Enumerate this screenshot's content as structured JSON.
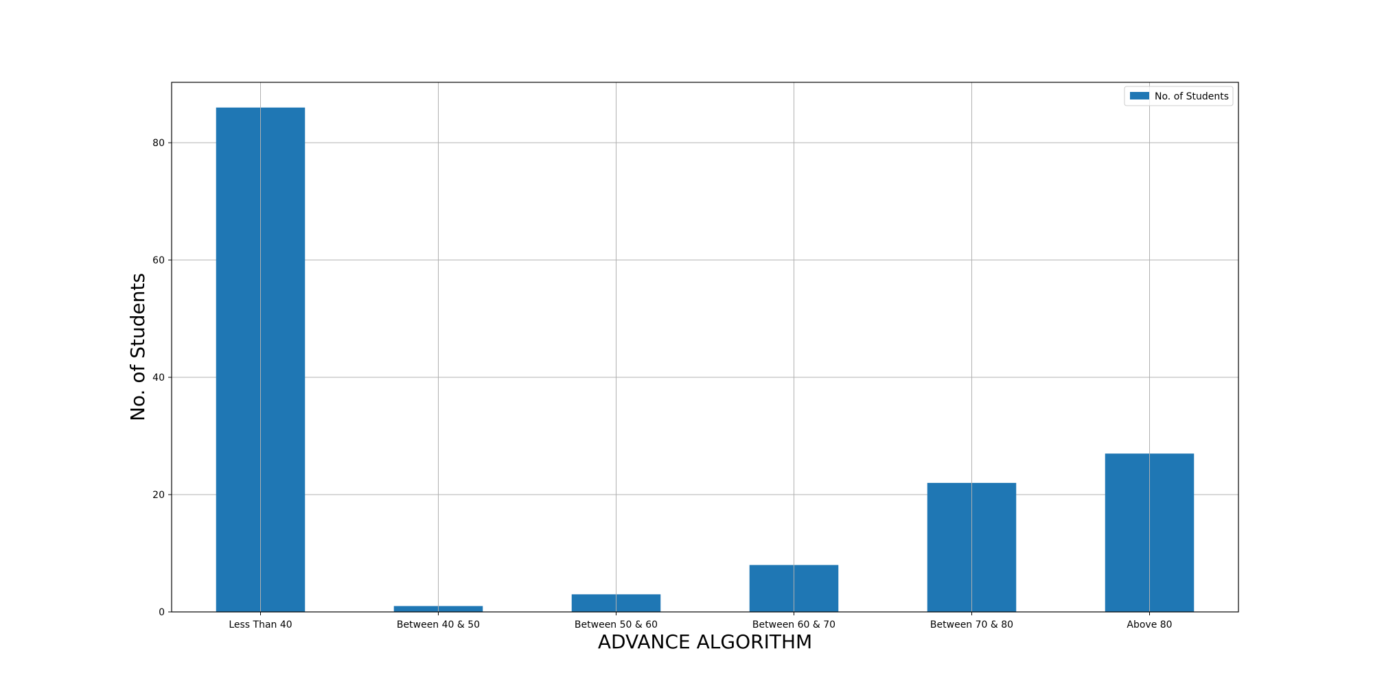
{
  "chart_data": {
    "type": "bar",
    "title": "",
    "xlabel": "ADVANCE ALGORITHM",
    "ylabel": "No. of Students",
    "categories": [
      "Less Than 40",
      "Between 40 & 50",
      "Between 50 & 60",
      "Between 60 & 70",
      "Between 70 & 80",
      "Above 80"
    ],
    "series": [
      {
        "name": "No. of Students",
        "values": [
          86,
          1,
          3,
          8,
          22,
          27
        ],
        "color": "#1f77b4"
      }
    ],
    "ylim": [
      0,
      90.3
    ],
    "yticks": [
      0,
      20,
      40,
      60,
      80
    ],
    "ytick_labels": [
      "0",
      "20",
      "40",
      "60",
      "80"
    ],
    "grid": true,
    "legend_position": "top-right"
  }
}
